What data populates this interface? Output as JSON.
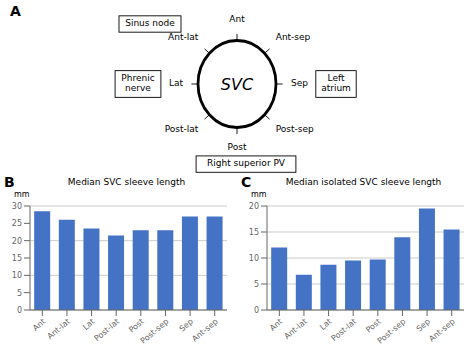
{
  "chart_data": [
    {
      "type": "diagram",
      "annotations": [
        "A",
        "SVC",
        "Ant",
        "Ant-lat",
        "Lat",
        "Post-lat",
        "Post",
        "Post-sep",
        "Sep",
        "Ant-sep",
        "Sinus node",
        "Phrenic\nnerve",
        "Left\natrium",
        "Right superior PV"
      ]
    },
    {
      "type": "bar",
      "title": "Median SVC sleeve length",
      "y_label": "mm",
      "annotations": [
        "B"
      ],
      "categories": [
        "Ant",
        "Ant-lat",
        "Lat",
        "Post-lat",
        "Post",
        "Post-sep",
        "Sep",
        "Ant-sep"
      ],
      "values": [
        28.5,
        26.0,
        23.5,
        21.5,
        23.0,
        23.0,
        27.0,
        27.0
      ],
      "color": "#4472C4",
      "ylim": [
        0,
        30
      ],
      "yticks": [
        0,
        5,
        10,
        15,
        20,
        25,
        30
      ],
      "grid": true
    },
    {
      "type": "bar",
      "title": "Median isolated SVC sleeve length",
      "y_label": "mm",
      "annotations": [
        "C"
      ],
      "categories": [
        "Ant",
        "Ant-lat",
        "Lat",
        "Post-lat",
        "Post",
        "Post-sep",
        "Sep",
        "Ant-sep"
      ],
      "values": [
        12.0,
        6.8,
        8.7,
        9.5,
        9.7,
        14.0,
        19.5,
        15.5
      ],
      "color": "#4472C4",
      "ylim": [
        0,
        20
      ],
      "yticks": [
        0,
        5,
        10,
        15,
        20
      ],
      "grid": true
    }
  ]
}
